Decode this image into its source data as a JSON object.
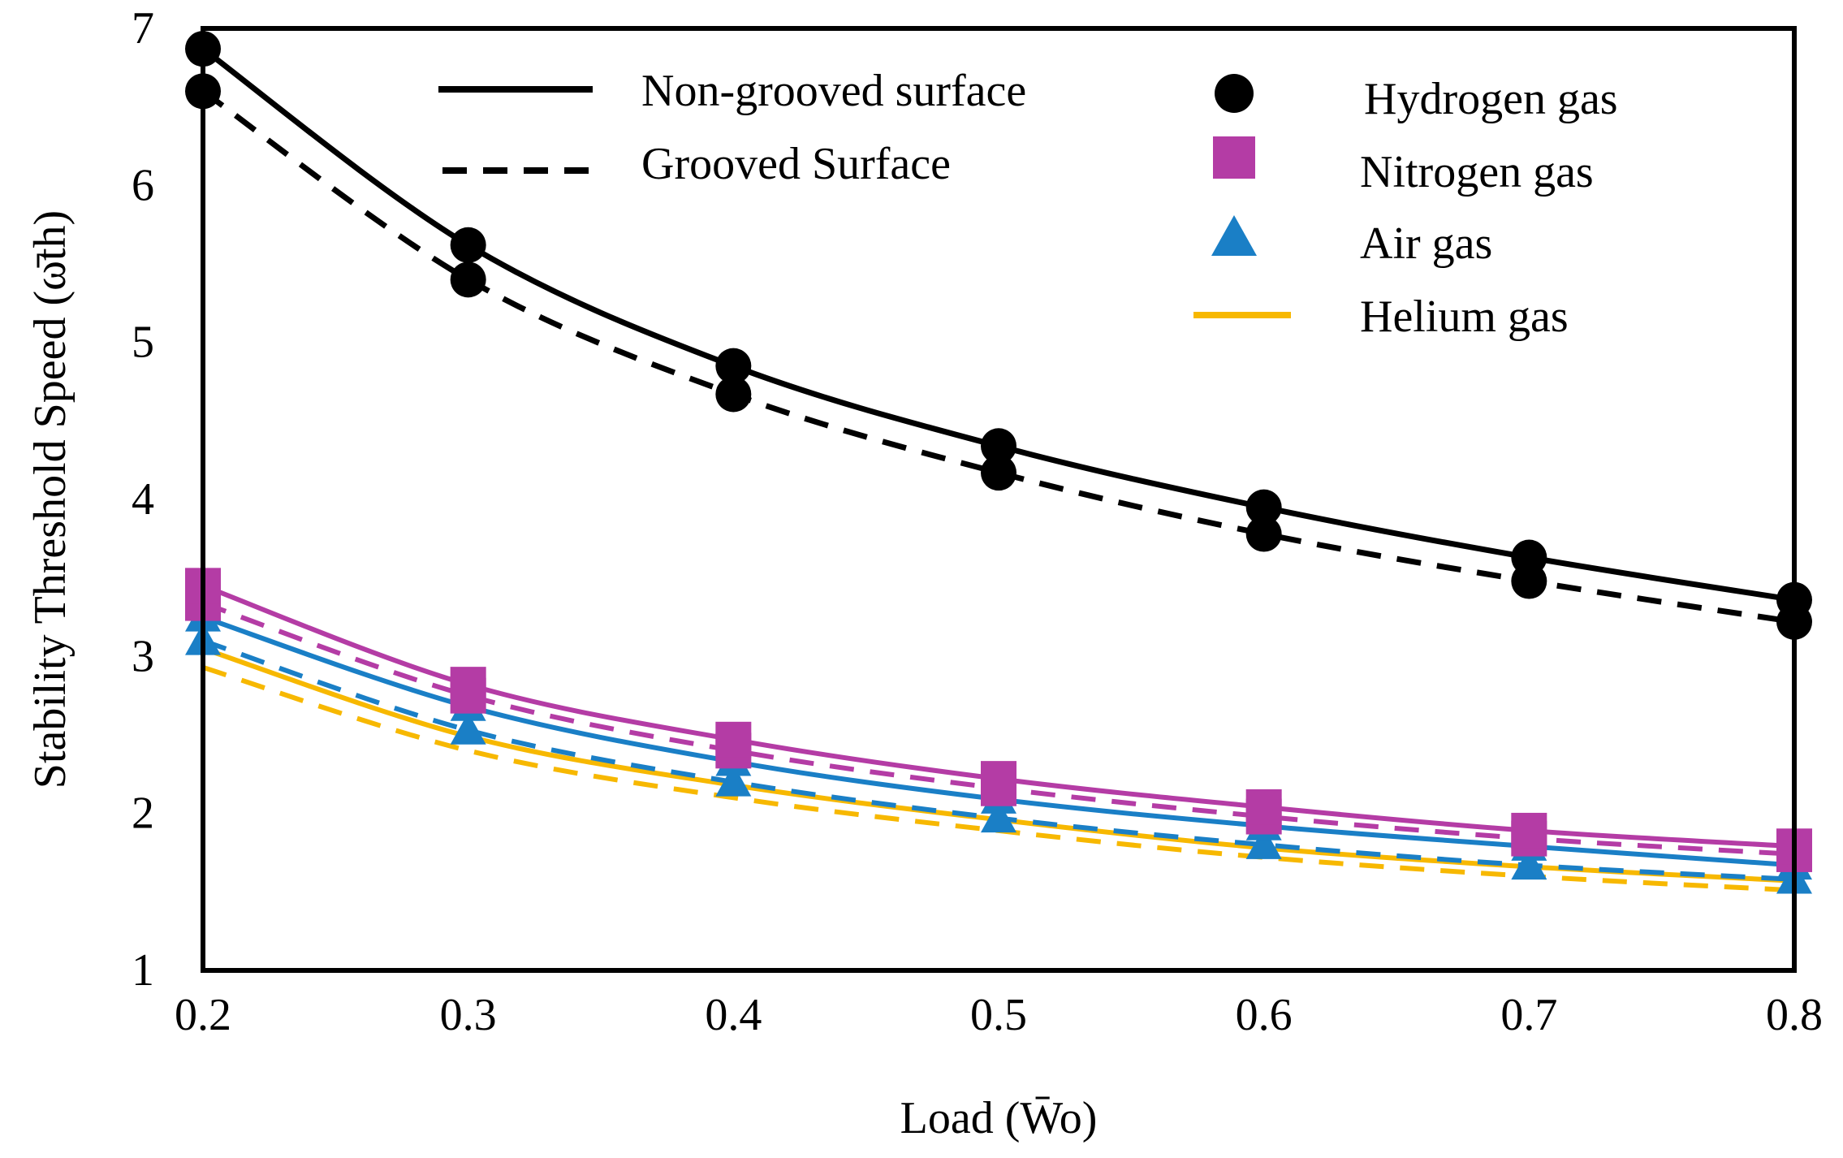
{
  "chart_data": {
    "type": "line",
    "title": "",
    "xlabel": "Load (W̄o)",
    "ylabel": "Stability Threshold Speed (ω̄th)",
    "xlim": [
      0.2,
      0.8
    ],
    "ylim": [
      1,
      7
    ],
    "x_ticks": [
      "0.2",
      "0.3",
      "0.4",
      "0.5",
      "0.6",
      "0.7",
      "0.8"
    ],
    "y_ticks": [
      "1",
      "2",
      "3",
      "4",
      "5",
      "6",
      "7"
    ],
    "grid": false,
    "legend_position": "top",
    "line_styles": [
      {
        "label": "Non-grooved surface",
        "dash": "solid"
      },
      {
        "label": "Grooved Surface",
        "dash": "dashed"
      }
    ],
    "gases": [
      {
        "label": "Hydrogen gas",
        "marker": "circle",
        "color": "#000000"
      },
      {
        "label": "Nitrogen gas",
        "marker": "square",
        "color": "#b43ca5"
      },
      {
        "label": "Air gas",
        "marker": "triangle",
        "color": "#1a7fc6"
      },
      {
        "label": "Helium gas",
        "marker": "line",
        "color": "#f7b800"
      }
    ],
    "x": [
      0.2,
      0.3,
      0.4,
      0.5,
      0.6,
      0.7,
      0.8
    ],
    "series": [
      {
        "gas": 0,
        "style": "solid",
        "color": "#000000",
        "marker": "circle",
        "values": [
          6.87,
          5.62,
          4.85,
          4.34,
          3.95,
          3.63,
          3.36
        ]
      },
      {
        "gas": 0,
        "style": "dashed",
        "color": "#000000",
        "marker": "circle",
        "values": [
          6.6,
          5.4,
          4.67,
          4.17,
          3.78,
          3.48,
          3.22
        ]
      },
      {
        "gas": 1,
        "style": "solid",
        "color": "#b43ca5",
        "marker": "square",
        "values": [
          3.45,
          2.82,
          2.47,
          2.22,
          2.04,
          1.89,
          1.79
        ]
      },
      {
        "gas": 1,
        "style": "dashed",
        "color": "#b43ca5",
        "marker": "square",
        "values": [
          3.34,
          2.75,
          2.4,
          2.16,
          1.98,
          1.84,
          1.74
        ]
      },
      {
        "gas": 2,
        "style": "solid",
        "color": "#1a7fc6",
        "marker": "triangle",
        "values": [
          3.25,
          2.68,
          2.33,
          2.09,
          1.92,
          1.79,
          1.67
        ]
      },
      {
        "gas": 2,
        "style": "dashed",
        "color": "#1a7fc6",
        "marker": "triangle",
        "values": [
          3.1,
          2.53,
          2.2,
          1.97,
          1.8,
          1.67,
          1.58
        ]
      },
      {
        "gas": 3,
        "style": "solid",
        "color": "#f7b800",
        "marker": "none",
        "values": [
          3.05,
          2.49,
          2.18,
          1.96,
          1.78,
          1.66,
          1.57
        ]
      },
      {
        "gas": 3,
        "style": "dashed",
        "color": "#f7b800",
        "marker": "none",
        "values": [
          2.93,
          2.4,
          2.1,
          1.89,
          1.72,
          1.6,
          1.51
        ]
      }
    ]
  }
}
